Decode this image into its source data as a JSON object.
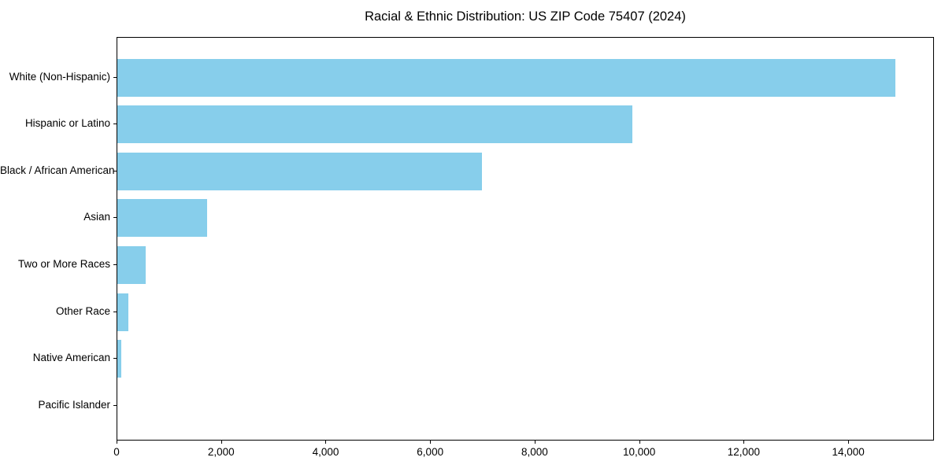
{
  "chart_data": {
    "type": "bar",
    "orientation": "horizontal",
    "title": "Racial & Ethnic Distribution: US ZIP Code 75407 (2024)",
    "categories": [
      "White (Non-Hispanic)",
      "Hispanic or Latino",
      "Black / African American",
      "Asian",
      "Two or More Races",
      "Other Race",
      "Native American",
      "Pacific Islander"
    ],
    "values": [
      14890,
      9855,
      6980,
      1720,
      540,
      210,
      75,
      0
    ],
    "title_text": "Racial & Ethnic Distribution: US ZIP Code 75407 (2024)",
    "xlabel": "",
    "ylabel": "",
    "xlim": [
      0,
      15640
    ],
    "x_ticks": [
      0,
      2000,
      4000,
      6000,
      8000,
      10000,
      12000,
      14000
    ],
    "x_tick_labels": [
      "0",
      "2,000",
      "4,000",
      "6,000",
      "8,000",
      "10,000",
      "12,000",
      "14,000"
    ],
    "bar_color": "#87CEEB",
    "grid": false,
    "legend": null,
    "background_color": "#ffffff",
    "spine_color": "#000000"
  }
}
